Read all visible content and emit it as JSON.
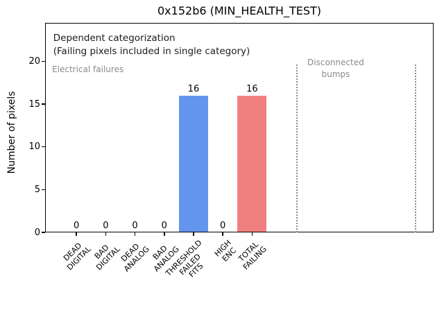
{
  "chart_data": {
    "type": "bar",
    "title": "0x152b6 (MIN_HEALTH_TEST)",
    "ylabel": "Number of pixels",
    "xlabel": "",
    "ylim": [
      0,
      24.5
    ],
    "yticks": [
      0,
      5,
      10,
      15,
      20
    ],
    "xlim": [
      -1.07,
      12.2
    ],
    "grid": false,
    "legend_position": "none",
    "bar_width": 1.0,
    "categories": [
      "DEAD\nDIGITAL",
      "BAD\nDIGITAL",
      "DEAD\nANALOG",
      "BAD\nANALOG",
      "THRESHOLD\nFAILED\nFITS",
      "HIGH\nENC",
      "TOTAL\nFAILING"
    ],
    "values": [
      0,
      0,
      0,
      0,
      16,
      0,
      16
    ],
    "bar_colors": [
      null,
      null,
      null,
      null,
      "#6495ed",
      null,
      "#f08080"
    ],
    "colors": {
      "threshold_failed_bar": "#6495ed",
      "total_failing_bar": "#f08080",
      "gray_text": "#8a8a8a",
      "spine": "#000000"
    },
    "annotations": [
      {
        "id": "dependent-categorization",
        "text": "Dependent categorization",
        "color": "#1a1a1a",
        "font_size": 13.5,
        "align": "left",
        "fx": 0.021,
        "fy": 0.043
      },
      {
        "id": "dependent-note",
        "text": "(Failing pixels included in single category)",
        "color": "#1a1a1a",
        "font_size": 13.5,
        "align": "left",
        "fx": 0.021,
        "fy": 0.106
      },
      {
        "id": "electrical-failures",
        "text": "Electrical failures",
        "color": "#8a8a8a",
        "font_size": 12,
        "align": "left",
        "fx": 0.018,
        "fy": 0.196
      },
      {
        "id": "disconnected-bumps",
        "text": "Disconnected\nbumps",
        "color": "#8a8a8a",
        "font_size": 12,
        "align": "center",
        "fx": 0.748,
        "fy": 0.163
      }
    ],
    "separators": {
      "x_data": [
        7.53,
        11.58
      ],
      "y_top_data": 19.6,
      "color": "#8a8a8a",
      "line_style": "dotted"
    }
  }
}
